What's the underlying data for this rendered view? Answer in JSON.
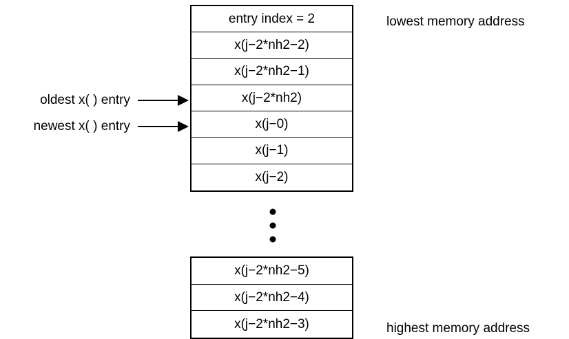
{
  "top_stack": {
    "cells": [
      "entry index = 2",
      "x(j−2*nh2−2)",
      "x(j−2*nh2−1)",
      "x(j−2*nh2)",
      "x(j−0)",
      "x(j−1)",
      "x(j−2)"
    ]
  },
  "bottom_stack": {
    "cells": [
      "x(j−2*nh2−5)",
      "x(j−2*nh2−4)",
      "x(j−2*nh2−3)"
    ]
  },
  "annotations": {
    "lowest": "lowest memory address",
    "highest": "highest memory address"
  },
  "pointers": {
    "oldest": "oldest x( ) entry",
    "newest": "newest x( ) entry"
  }
}
